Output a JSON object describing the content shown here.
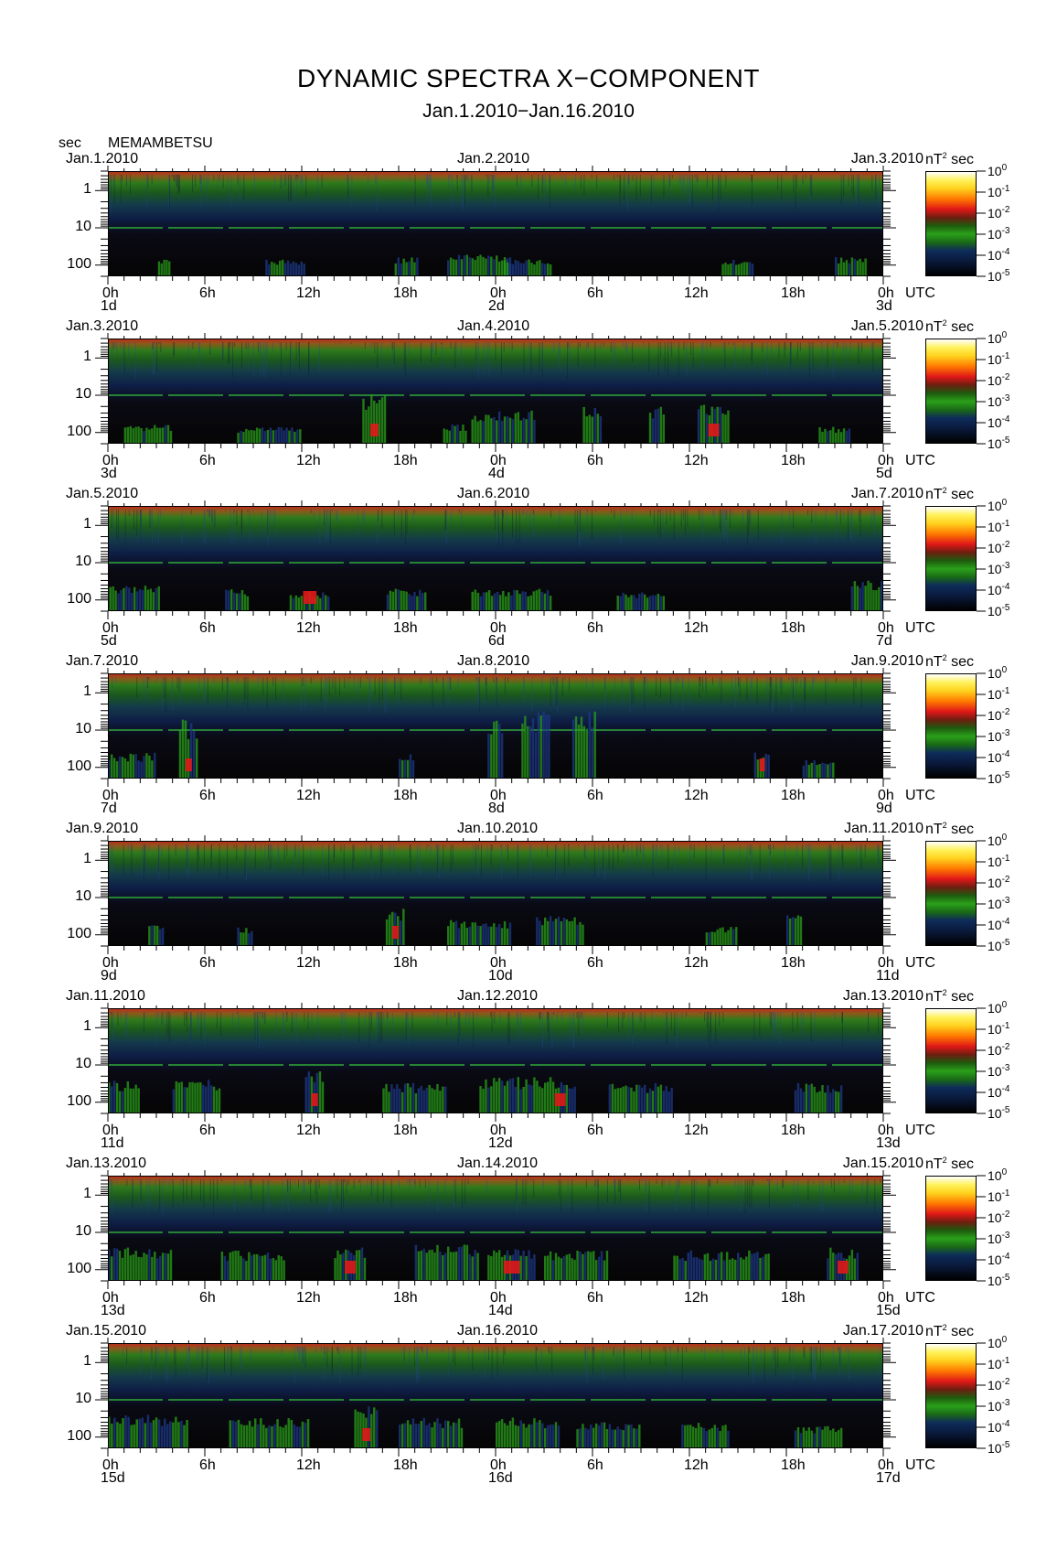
{
  "page": {
    "title": "DYNAMIC SPECTRA X−COMPONENT",
    "subtitle": "Jan.1.2010−Jan.16.2010",
    "y_unit": "sec",
    "station": "MEMAMBETSU",
    "right_label": "UTC",
    "cbar_unit_base": "nT",
    "cbar_unit_exp": "2",
    "cbar_unit_tail": "sec"
  },
  "colors": {
    "background": "#000000",
    "quiet": "#0a1a3c",
    "weak": "#1e3a8a",
    "moderate": "#2aa01a",
    "strong": "#e01818",
    "peak": "#ffd21e"
  },
  "chart_data": {
    "type": "heatmap",
    "y_axis": {
      "label": "sec",
      "scale": "log",
      "ticks": [
        "1",
        "10",
        "100"
      ],
      "range_sec": [
        0.3,
        200
      ]
    },
    "x_axis": {
      "ticks": [
        "0h",
        "6h",
        "12h",
        "18h",
        "0h",
        "6h",
        "12h",
        "18h",
        "0h"
      ],
      "span_hours": 48
    },
    "colorbar": {
      "unit": "nT2 sec",
      "ticks": [
        {
          "base": "10",
          "exp": "0"
        },
        {
          "base": "10",
          "exp": "-1"
        },
        {
          "base": "10",
          "exp": "-2"
        },
        {
          "base": "10",
          "exp": "-3"
        },
        {
          "base": "10",
          "exp": "-4"
        },
        {
          "base": "10",
          "exp": "-5"
        }
      ]
    },
    "panels": [
      {
        "left_date": "Jan.1.2010",
        "mid_date": "Jan.2.2010",
        "right_date": "Jan.3.2010",
        "day_start": "1d",
        "day_mid": "2d",
        "day_end": "3d",
        "events": [
          {
            "hour": 3.5,
            "width_h": 0.8,
            "top_sec": 70,
            "level": 1
          },
          {
            "hour": 11,
            "width_h": 2.5,
            "top_sec": 70,
            "level": 2
          },
          {
            "hour": 18.5,
            "width_h": 1.5,
            "top_sec": 60,
            "level": 1
          },
          {
            "hour": 23,
            "width_h": 4,
            "top_sec": 50,
            "level": 1
          },
          {
            "hour": 26,
            "width_h": 3,
            "top_sec": 70,
            "level": 1
          },
          {
            "hour": 39,
            "width_h": 2,
            "top_sec": 70,
            "level": 1
          },
          {
            "hour": 46,
            "width_h": 2,
            "top_sec": 60,
            "level": 1
          }
        ]
      },
      {
        "left_date": "Jan.3.2010",
        "mid_date": "Jan.4.2010",
        "right_date": "Jan.5.2010",
        "day_start": "3d",
        "day_mid": "4d",
        "day_end": "5d",
        "events": [
          {
            "hour": 2.5,
            "width_h": 3,
            "top_sec": 60,
            "level": 1
          },
          {
            "hour": 10,
            "width_h": 4,
            "top_sec": 70,
            "level": 1
          },
          {
            "hour": 16.5,
            "width_h": 1.5,
            "top_sec": 8,
            "level": 3
          },
          {
            "hour": 21.5,
            "width_h": 1.5,
            "top_sec": 60,
            "level": 1
          },
          {
            "hour": 24.5,
            "width_h": 4,
            "top_sec": 25,
            "level": 2
          },
          {
            "hour": 30,
            "width_h": 1.2,
            "top_sec": 20,
            "level": 2
          },
          {
            "hour": 34,
            "width_h": 1,
            "top_sec": 20,
            "level": 2
          },
          {
            "hour": 37.5,
            "width_h": 2,
            "top_sec": 15,
            "level": 3
          },
          {
            "hour": 45,
            "width_h": 2,
            "top_sec": 70,
            "level": 1
          }
        ]
      },
      {
        "left_date": "Jan.5.2010",
        "mid_date": "Jan.6.2010",
        "right_date": "Jan.7.2010",
        "day_start": "5d",
        "day_mid": "6d",
        "day_end": "7d",
        "events": [
          {
            "hour": 1.5,
            "width_h": 3.5,
            "top_sec": 40,
            "level": 2
          },
          {
            "hour": 8,
            "width_h": 1.5,
            "top_sec": 50,
            "level": 2
          },
          {
            "hour": 12.5,
            "width_h": 2.5,
            "top_sec": 60,
            "level": 3
          },
          {
            "hour": 18.5,
            "width_h": 2.5,
            "top_sec": 50,
            "level": 1
          },
          {
            "hour": 25,
            "width_h": 5,
            "top_sec": 50,
            "level": 1
          },
          {
            "hour": 33,
            "width_h": 3,
            "top_sec": 60,
            "level": 1
          },
          {
            "hour": 47,
            "width_h": 2,
            "top_sec": 30,
            "level": 2
          }
        ]
      },
      {
        "left_date": "Jan.7.2010",
        "mid_date": "Jan.8.2010",
        "right_date": "Jan.9.2010",
        "day_start": "7d",
        "day_mid": "8d",
        "day_end": "9d",
        "events": [
          {
            "hour": 1.5,
            "width_h": 3,
            "top_sec": 40,
            "level": 2
          },
          {
            "hour": 5,
            "width_h": 1.2,
            "top_sec": 5,
            "level": 3
          },
          {
            "hour": 18.5,
            "width_h": 1,
            "top_sec": 40,
            "level": 2
          },
          {
            "hour": 24,
            "width_h": 1,
            "top_sec": 3,
            "level": 2
          },
          {
            "hour": 26.5,
            "width_h": 1.8,
            "top_sec": 3,
            "level": 2
          },
          {
            "hour": 29.5,
            "width_h": 1.5,
            "top_sec": 3,
            "level": 2
          },
          {
            "hour": 40.5,
            "width_h": 1,
            "top_sec": 40,
            "level": 3
          },
          {
            "hour": 44,
            "width_h": 2,
            "top_sec": 60,
            "level": 1
          }
        ]
      },
      {
        "left_date": "Jan.9.2010",
        "mid_date": "Jan.10.2010",
        "right_date": "Jan.11.2010",
        "day_start": "9d",
        "day_mid": "10d",
        "day_end": "11d",
        "events": [
          {
            "hour": 3,
            "width_h": 1,
            "top_sec": 50,
            "level": 2
          },
          {
            "hour": 8.5,
            "width_h": 1,
            "top_sec": 60,
            "level": 2
          },
          {
            "hour": 17.8,
            "width_h": 1.2,
            "top_sec": 20,
            "level": 3
          },
          {
            "hour": 23,
            "width_h": 4,
            "top_sec": 40,
            "level": 2
          },
          {
            "hour": 28,
            "width_h": 3,
            "top_sec": 30,
            "level": 2
          },
          {
            "hour": 38,
            "width_h": 2,
            "top_sec": 60,
            "level": 1
          },
          {
            "hour": 42.5,
            "width_h": 1,
            "top_sec": 30,
            "level": 2
          }
        ]
      },
      {
        "left_date": "Jan.11.2010",
        "mid_date": "Jan.12.2010",
        "right_date": "Jan.13.2010",
        "day_start": "11d",
        "day_mid": "12d",
        "day_end": "13d",
        "events": [
          {
            "hour": 1,
            "width_h": 2,
            "top_sec": 25,
            "level": 2
          },
          {
            "hour": 5.5,
            "width_h": 3,
            "top_sec": 25,
            "level": 2
          },
          {
            "hour": 12.8,
            "width_h": 1.2,
            "top_sec": 12,
            "level": 3
          },
          {
            "hour": 19,
            "width_h": 4,
            "top_sec": 30,
            "level": 2
          },
          {
            "hour": 25,
            "width_h": 4,
            "top_sec": 20,
            "level": 2
          },
          {
            "hour": 28,
            "width_h": 2,
            "top_sec": 20,
            "level": 3
          },
          {
            "hour": 33,
            "width_h": 4,
            "top_sec": 30,
            "level": 2
          },
          {
            "hour": 44,
            "width_h": 3,
            "top_sec": 30,
            "level": 2
          }
        ]
      },
      {
        "left_date": "Jan.13.2010",
        "mid_date": "Jan.14.2010",
        "right_date": "Jan.15.2010",
        "day_start": "13d",
        "day_mid": "14d",
        "day_end": "15d",
        "events": [
          {
            "hour": 2,
            "width_h": 4,
            "top_sec": 25,
            "level": 2
          },
          {
            "hour": 9,
            "width_h": 4,
            "top_sec": 30,
            "level": 2
          },
          {
            "hour": 15,
            "width_h": 2,
            "top_sec": 25,
            "level": 3
          },
          {
            "hour": 21,
            "width_h": 4,
            "top_sec": 20,
            "level": 2
          },
          {
            "hour": 25,
            "width_h": 3,
            "top_sec": 25,
            "level": 3
          },
          {
            "hour": 29,
            "width_h": 4,
            "top_sec": 30,
            "level": 2
          },
          {
            "hour": 38,
            "width_h": 6,
            "top_sec": 30,
            "level": 2
          },
          {
            "hour": 45.5,
            "width_h": 2,
            "top_sec": 25,
            "level": 3
          }
        ]
      },
      {
        "left_date": "Jan.15.2010",
        "mid_date": "Jan.16.2010",
        "right_date": "Jan.17.2010",
        "day_start": "15d",
        "day_mid": "16d",
        "day_end": "17d",
        "events": [
          {
            "hour": 2.5,
            "width_h": 5,
            "top_sec": 25,
            "level": 2
          },
          {
            "hour": 10,
            "width_h": 5,
            "top_sec": 30,
            "level": 2
          },
          {
            "hour": 16,
            "width_h": 1.5,
            "top_sec": 15,
            "level": 3
          },
          {
            "hour": 20,
            "width_h": 4,
            "top_sec": 30,
            "level": 2
          },
          {
            "hour": 26,
            "width_h": 4,
            "top_sec": 30,
            "level": 2
          },
          {
            "hour": 31,
            "width_h": 4,
            "top_sec": 40,
            "level": 2
          },
          {
            "hour": 37,
            "width_h": 3,
            "top_sec": 40,
            "level": 1
          },
          {
            "hour": 44,
            "width_h": 3,
            "top_sec": 50,
            "level": 1
          }
        ]
      }
    ]
  }
}
